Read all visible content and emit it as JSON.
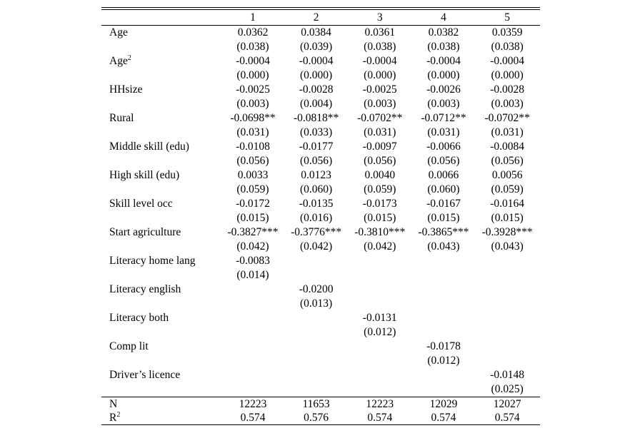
{
  "columns": [
    "1",
    "2",
    "3",
    "4",
    "5"
  ],
  "rows": [
    {
      "label": "Age",
      "sup": "",
      "coef": [
        "0.0362",
        "0.0384",
        "0.0361",
        "0.0382",
        "0.0359"
      ],
      "se": [
        "(0.038)",
        "(0.039)",
        "(0.038)",
        "(0.038)",
        "(0.038)"
      ]
    },
    {
      "label": "Age",
      "sup": "2",
      "coef": [
        "-0.0004",
        "-0.0004",
        "-0.0004",
        "-0.0004",
        "-0.0004"
      ],
      "se": [
        "(0.000)",
        "(0.000)",
        "(0.000)",
        "(0.000)",
        "(0.000)"
      ]
    },
    {
      "label": "HHsize",
      "sup": "",
      "coef": [
        "-0.0025",
        "-0.0028",
        "-0.0025",
        "-0.0026",
        "-0.0028"
      ],
      "se": [
        "(0.003)",
        "(0.004)",
        "(0.003)",
        "(0.003)",
        "(0.003)"
      ]
    },
    {
      "label": "Rural",
      "sup": "",
      "coef": [
        "-0.0698**",
        "-0.0818**",
        "-0.0702**",
        "-0.0712**",
        "-0.0702**"
      ],
      "se": [
        "(0.031)",
        "(0.033)",
        "(0.031)",
        "(0.031)",
        "(0.031)"
      ]
    },
    {
      "label": "Middle skill (edu)",
      "sup": "",
      "coef": [
        "-0.0108",
        "-0.0177",
        "-0.0097",
        "-0.0066",
        "-0.0084"
      ],
      "se": [
        "(0.056)",
        "(0.056)",
        "(0.056)",
        "(0.056)",
        "(0.056)"
      ]
    },
    {
      "label": "High skill (edu)",
      "sup": "",
      "coef": [
        "0.0033",
        "0.0123",
        "0.0040",
        "0.0066",
        "0.0056"
      ],
      "se": [
        "(0.059)",
        "(0.060)",
        "(0.059)",
        "(0.060)",
        "(0.059)"
      ]
    },
    {
      "label": "Skill level occ",
      "sup": "",
      "coef": [
        "-0.0172",
        "-0.0135",
        "-0.0173",
        "-0.0167",
        "-0.0164"
      ],
      "se": [
        "(0.015)",
        "(0.016)",
        "(0.015)",
        "(0.015)",
        "(0.015)"
      ]
    },
    {
      "label": "Start agriculture",
      "sup": "",
      "coef": [
        "-0.3827***",
        "-0.3776***",
        "-0.3810***",
        "-0.3865***",
        "-0.3928***"
      ],
      "se": [
        "(0.042)",
        "(0.042)",
        "(0.042)",
        "(0.043)",
        "(0.043)"
      ]
    },
    {
      "label": "Literacy home lang",
      "sup": "",
      "coef": [
        "-0.0083",
        "",
        "",
        "",
        ""
      ],
      "se": [
        "(0.014)",
        "",
        "",
        "",
        ""
      ]
    },
    {
      "label": "Literacy english",
      "sup": "",
      "coef": [
        "",
        "-0.0200",
        "",
        "",
        ""
      ],
      "se": [
        "",
        "(0.013)",
        "",
        "",
        ""
      ]
    },
    {
      "label": "Literacy both",
      "sup": "",
      "coef": [
        "",
        "",
        "-0.0131",
        "",
        ""
      ],
      "se": [
        "",
        "",
        "(0.012)",
        "",
        ""
      ]
    },
    {
      "label": "Comp lit",
      "sup": "",
      "coef": [
        "",
        "",
        "",
        "-0.0178",
        ""
      ],
      "se": [
        "",
        "",
        "",
        "(0.012)",
        ""
      ]
    },
    {
      "label": "Driver’s licence",
      "sup": "",
      "coef": [
        "",
        "",
        "",
        "",
        "-0.0148"
      ],
      "se": [
        "",
        "",
        "",
        "",
        "(0.025)"
      ]
    }
  ],
  "stats": [
    {
      "label": "N",
      "sup": "",
      "values": [
        "12223",
        "11653",
        "12223",
        "12029",
        "12027"
      ]
    },
    {
      "label": "R",
      "sup": "2",
      "values": [
        "0.574",
        "0.576",
        "0.574",
        "0.574",
        "0.574"
      ]
    }
  ]
}
